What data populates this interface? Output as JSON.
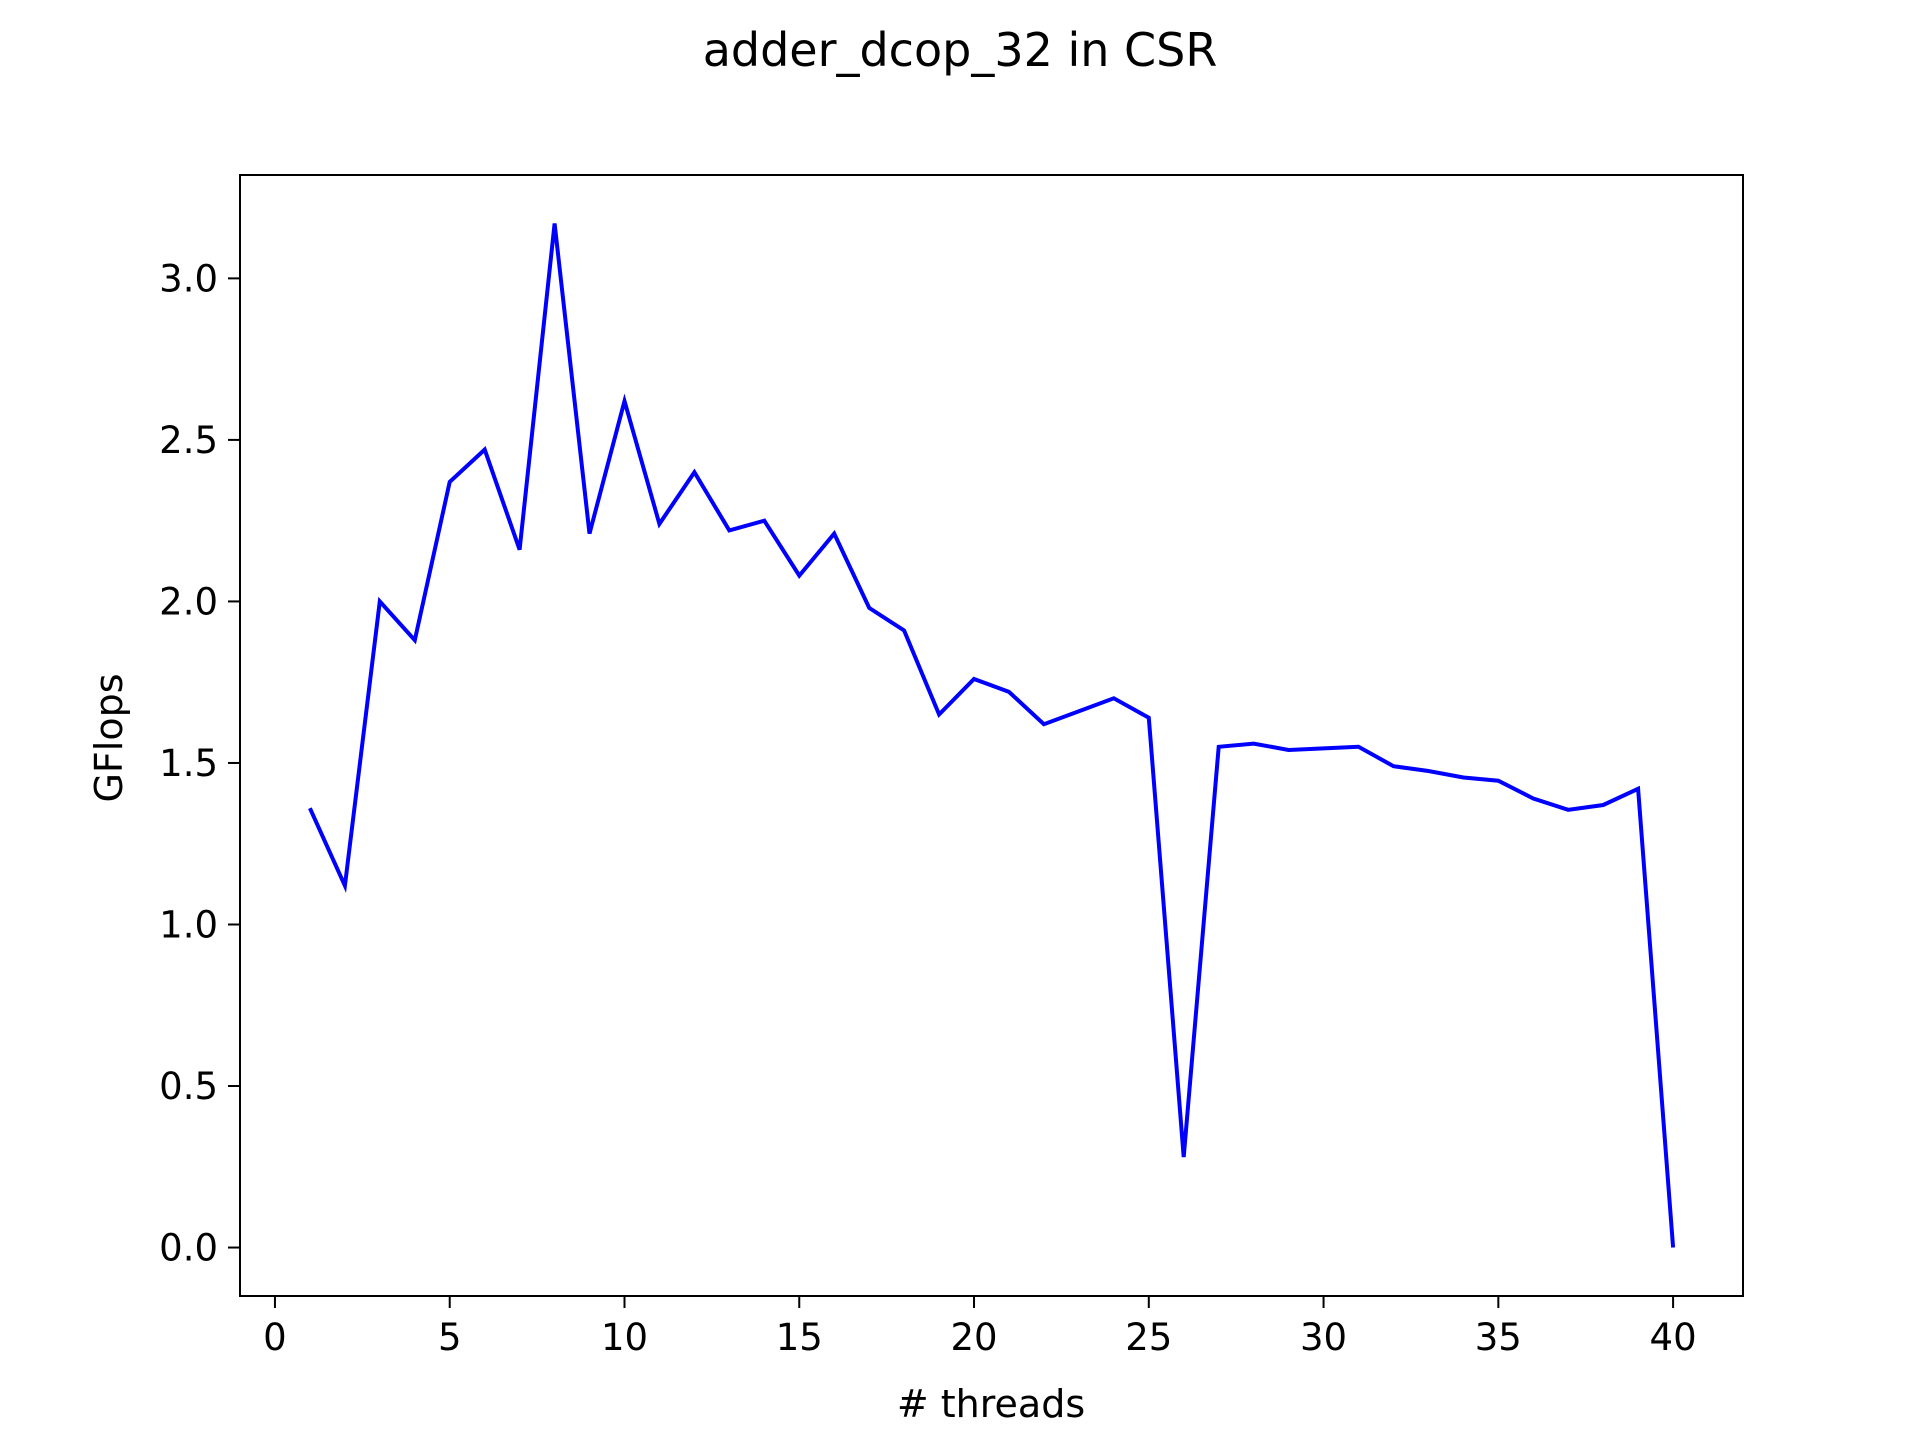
{
  "chart_data": {
    "type": "line",
    "title": "adder_dcop_32 in CSR",
    "xlabel": "# threads",
    "ylabel": "GFlops",
    "xlim": [
      -1,
      42
    ],
    "ylim": [
      -0.15,
      3.32
    ],
    "xticks": [
      0,
      5,
      10,
      15,
      20,
      25,
      30,
      35,
      40
    ],
    "yticks": [
      0.0,
      0.5,
      1.0,
      1.5,
      2.0,
      2.5,
      3.0
    ],
    "xtick_labels": [
      "0",
      "5",
      "10",
      "15",
      "20",
      "25",
      "30",
      "35",
      "40"
    ],
    "ytick_labels": [
      "0.0",
      "0.5",
      "1.0",
      "1.5",
      "2.0",
      "2.5",
      "3.0"
    ],
    "grid": false,
    "line_color": "#0000ff",
    "series": [
      {
        "x": [
          1,
          2,
          3,
          4,
          5,
          6,
          7,
          8,
          9,
          10,
          11,
          12,
          13,
          14,
          15,
          16,
          17,
          18,
          19,
          20,
          21,
          22,
          23,
          24,
          25,
          26,
          27,
          28,
          29,
          30,
          31,
          32,
          33,
          34,
          35,
          36,
          37,
          38,
          39,
          40
        ],
        "values": [
          1.36,
          1.12,
          2.0,
          1.88,
          2.37,
          2.47,
          2.16,
          3.17,
          2.21,
          2.62,
          2.24,
          2.4,
          2.22,
          2.25,
          2.08,
          2.21,
          1.98,
          1.91,
          1.65,
          1.76,
          1.72,
          1.62,
          1.66,
          1.7,
          1.64,
          0.28,
          1.55,
          1.56,
          1.54,
          1.545,
          1.55,
          1.49,
          1.475,
          1.455,
          1.445,
          1.39,
          1.355,
          1.37,
          1.42,
          0.0
        ]
      }
    ]
  }
}
